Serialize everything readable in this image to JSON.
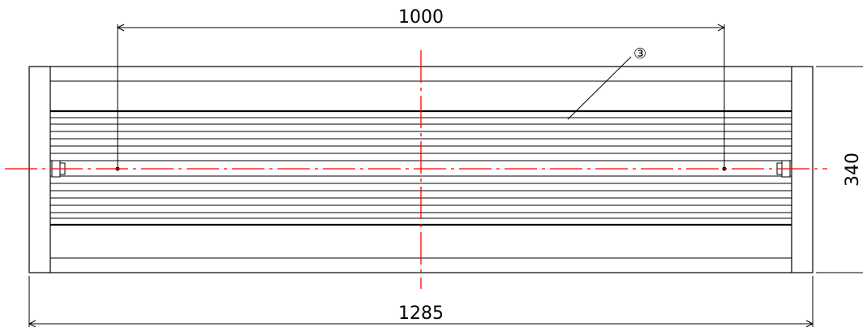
{
  "dimensions": {
    "top_span": "1000",
    "overall_length": "1285",
    "height": "340"
  },
  "callout": {
    "label": "③"
  },
  "colors": {
    "line": "#000000",
    "centerline": "#ff0000",
    "background": "#ffffff"
  }
}
